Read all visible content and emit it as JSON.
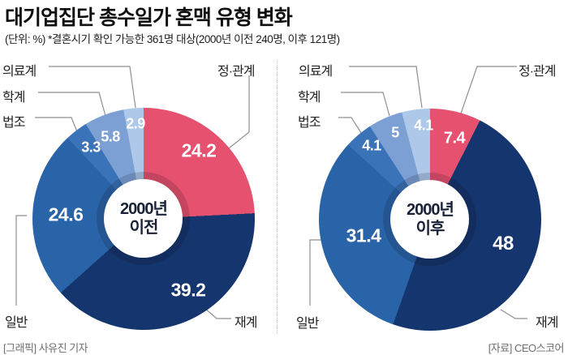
{
  "header": {
    "title": "대기업집단 총수일가 혼맥 유형 변화",
    "subtitle": "(단위: %) *결혼시기 확인 가능한 361명 대상(2000년 이전 240명, 이후 121명)"
  },
  "footer": {
    "left": "[그래픽] 사유진 기자",
    "right": "[자료] CEO스코어"
  },
  "chart_data": [
    {
      "type": "pie",
      "variant": "donut",
      "title": "2000년 이전",
      "center_label": [
        "2000년",
        "이전"
      ],
      "sample_size": "240명",
      "segments": [
        {
          "label": "정·관계",
          "value": 24.2,
          "color": "#E5516F"
        },
        {
          "label": "재계",
          "value": 39.2,
          "color": "#15356E"
        },
        {
          "label": "일반",
          "value": 24.6,
          "color": "#2A64A8"
        },
        {
          "label": "법조",
          "value": 3.3,
          "color": "#3B73B9"
        },
        {
          "label": "학계",
          "value": 5.8,
          "color": "#7DA0D4"
        },
        {
          "label": "의료계",
          "value": 2.9,
          "color": "#ADC8E9"
        }
      ]
    },
    {
      "type": "pie",
      "variant": "donut",
      "title": "2000년 이후",
      "center_label": [
        "2000년",
        "이후"
      ],
      "sample_size": "121명",
      "segments": [
        {
          "label": "정·관계",
          "value": 7.4,
          "color": "#E5516F"
        },
        {
          "label": "재계",
          "value": 48,
          "color": "#15356E"
        },
        {
          "label": "일반",
          "value": 31.4,
          "color": "#2A64A8"
        },
        {
          "label": "법조",
          "value": 4.1,
          "color": "#3B73B9"
        },
        {
          "label": "학계",
          "value": 5,
          "color": "#7DA0D4"
        },
        {
          "label": "의료계",
          "value": 4.1,
          "color": "#ADC8E9"
        }
      ]
    }
  ]
}
